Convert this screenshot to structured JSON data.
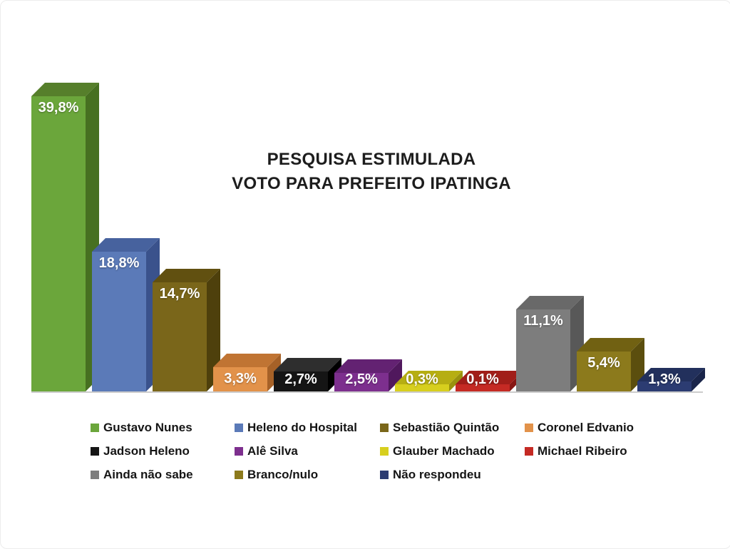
{
  "title": {
    "line1": "PESQUISA ESTIMULADA",
    "line2": "VOTO PARA PREFEITO IPATINGA"
  },
  "chart_data": {
    "type": "bar",
    "title": "PESQUISA ESTIMULADA VOTO PARA PREFEITO IPATINGA",
    "unit": "%",
    "categories": [
      "Gustavo Nunes",
      "Heleno do Hospital",
      "Sebastião Quintão",
      "Coronel Edvanio",
      "Jadson Heleno",
      "Alê Silva",
      "Glauber Machado",
      "Michael Ribeiro",
      "Ainda não sabe",
      "Branco/nulo",
      "Não respondeu"
    ],
    "values": [
      39.8,
      18.8,
      14.7,
      3.3,
      2.7,
      2.5,
      0.3,
      0.1,
      11.1,
      5.4,
      1.3
    ],
    "labels": [
      "39,8%",
      "18,8%",
      "14,7%",
      "3,3%",
      "2,7%",
      "2,5%",
      "0,3%",
      "0,1%",
      "11,1%",
      "5,4%",
      "1,3%"
    ],
    "colors": [
      {
        "front": "#6ba63b",
        "top": "#567f2b",
        "side": "#477021"
      },
      {
        "front": "#5b7ab8",
        "top": "#47629e",
        "side": "#3a528c"
      },
      {
        "front": "#7a661a",
        "top": "#615010",
        "side": "#4e400c"
      },
      {
        "front": "#e2924a",
        "top": "#c07433",
        "side": "#a66127"
      },
      {
        "front": "#151515",
        "top": "#2e2e2e",
        "side": "#000000"
      },
      {
        "front": "#7d2f8e",
        "top": "#632272",
        "side": "#50185d"
      },
      {
        "front": "#d7cf1e",
        "top": "#b6ae12",
        "side": "#99920e"
      },
      {
        "front": "#c52a24",
        "top": "#a11e19",
        "side": "#871613"
      },
      {
        "front": "#7d7d7d",
        "top": "#696969",
        "side": "#585858"
      },
      {
        "front": "#8c7a1c",
        "top": "#716112",
        "side": "#5b4e0e"
      },
      {
        "front": "#2c3c72",
        "top": "#22305c",
        "side": "#1a254a"
      }
    ],
    "ylim": [
      0,
      45
    ],
    "grid": false,
    "legend_position": "bottom",
    "value_label_color": "#ffffff",
    "axis_line_color": "#cccccc"
  }
}
